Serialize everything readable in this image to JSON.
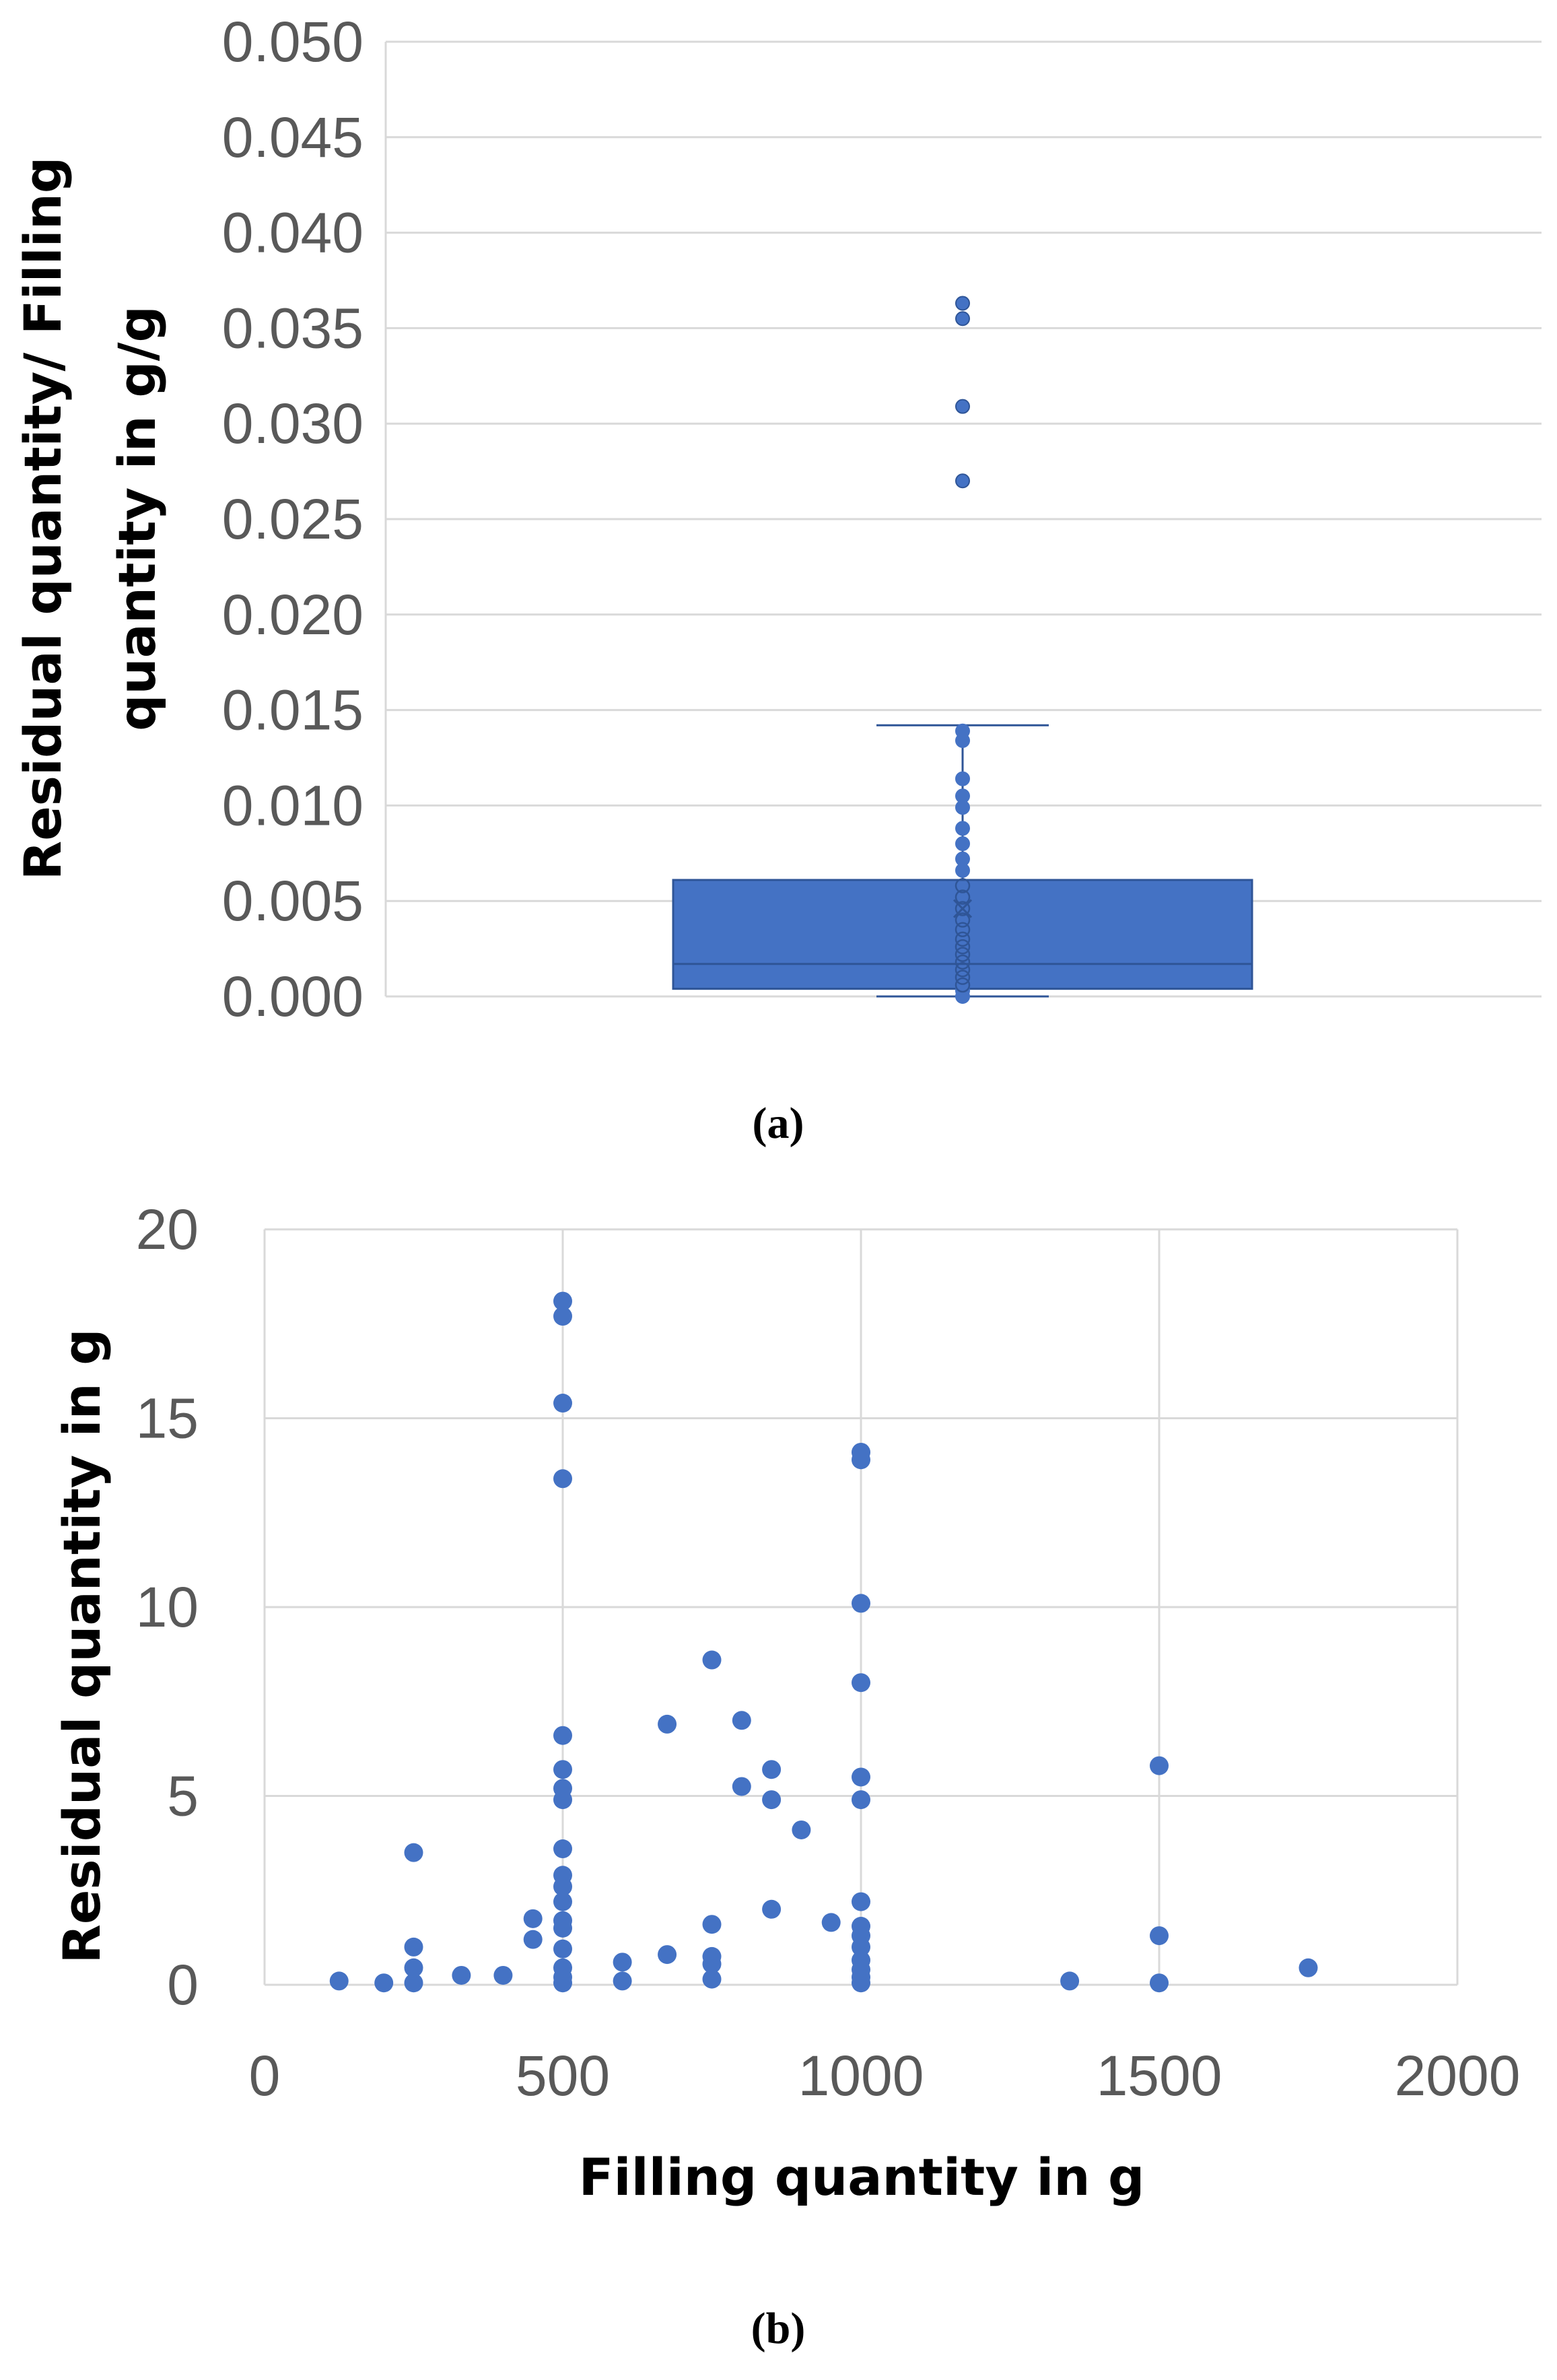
{
  "colors": {
    "series": "#4472C4",
    "box_fill": "#4472C4",
    "box_stroke": "#2F5597",
    "grid": "#D9D9D9",
    "tick_text": "#595959"
  },
  "chart_data": [
    {
      "id": "a",
      "type": "box",
      "caption_letter": "a",
      "ylabel_line1": "Residual quantity/ Filling",
      "ylabel_line2": "quantity in g/g",
      "xlabel": "",
      "ylim": [
        0,
        0.05
      ],
      "ytick_values": [
        0,
        0.005,
        0.01,
        0.015,
        0.02,
        0.025,
        0.03,
        0.035,
        0.04,
        0.045,
        0.05
      ],
      "ytick_labels": [
        "0.000",
        "0.005",
        "0.010",
        "0.015",
        "0.020",
        "0.025",
        "0.030",
        "0.035",
        "0.040",
        "0.045",
        "0.050"
      ],
      "grid": true,
      "box": {
        "min": 0.0,
        "q1": 0.0004,
        "median": 0.0017,
        "q3": 0.0061,
        "whisker_high": 0.0142,
        "mean": 0.0046
      },
      "outliers": [
        0.0363,
        0.0355,
        0.0309,
        0.027
      ],
      "points": [
        0.0,
        0.0003,
        0.0006,
        0.001,
        0.0014,
        0.0018,
        0.0022,
        0.0026,
        0.003,
        0.0035,
        0.004,
        0.0046,
        0.0052,
        0.0058,
        0.0066,
        0.0072,
        0.008,
        0.0088,
        0.0099,
        0.0105,
        0.0114,
        0.0134,
        0.0139
      ]
    },
    {
      "id": "b",
      "type": "scatter",
      "caption_letter": "b",
      "xlabel": "Filling quantity in g",
      "ylabel": "Residual quantity in g",
      "xlim": [
        0,
        2000
      ],
      "ylim": [
        0,
        20
      ],
      "xtick_values": [
        0,
        500,
        1000,
        1500,
        2000
      ],
      "xtick_labels": [
        "0",
        "500",
        "1000",
        "1500",
        "2000"
      ],
      "ytick_values": [
        0,
        5,
        10,
        15,
        20
      ],
      "ytick_labels": [
        "0",
        "5",
        "10",
        "15",
        "20"
      ],
      "grid": true,
      "points": [
        [
          125,
          0.1
        ],
        [
          200,
          0.05
        ],
        [
          250,
          3.5
        ],
        [
          250,
          1.0
        ],
        [
          250,
          0.45
        ],
        [
          250,
          0.05
        ],
        [
          330,
          0.25
        ],
        [
          400,
          0.25
        ],
        [
          450,
          1.75
        ],
        [
          450,
          1.2
        ],
        [
          500,
          18.1
        ],
        [
          500,
          17.7
        ],
        [
          500,
          15.4
        ],
        [
          500,
          13.4
        ],
        [
          500,
          6.6
        ],
        [
          500,
          5.7
        ],
        [
          500,
          5.2
        ],
        [
          500,
          4.9
        ],
        [
          500,
          3.6
        ],
        [
          500,
          2.9
        ],
        [
          500,
          2.6
        ],
        [
          500,
          2.2
        ],
        [
          500,
          1.7
        ],
        [
          500,
          1.5
        ],
        [
          500,
          0.95
        ],
        [
          500,
          0.45
        ],
        [
          500,
          0.2
        ],
        [
          500,
          0.05
        ],
        [
          600,
          0.6
        ],
        [
          600,
          0.1
        ],
        [
          675,
          6.9
        ],
        [
          675,
          0.8
        ],
        [
          750,
          8.6
        ],
        [
          750,
          1.6
        ],
        [
          750,
          0.75
        ],
        [
          750,
          0.55
        ],
        [
          750,
          0.15
        ],
        [
          800,
          7.0
        ],
        [
          800,
          5.25
        ],
        [
          850,
          5.7
        ],
        [
          850,
          4.9
        ],
        [
          850,
          2.0
        ],
        [
          900,
          4.1
        ],
        [
          950,
          1.65
        ],
        [
          1000,
          14.1
        ],
        [
          1000,
          13.9
        ],
        [
          1000,
          10.1
        ],
        [
          1000,
          8.0
        ],
        [
          1000,
          5.5
        ],
        [
          1000,
          4.9
        ],
        [
          1000,
          2.2
        ],
        [
          1000,
          1.55
        ],
        [
          1000,
          1.3
        ],
        [
          1000,
          1.0
        ],
        [
          1000,
          0.65
        ],
        [
          1000,
          0.4
        ],
        [
          1000,
          0.2
        ],
        [
          1000,
          0.05
        ],
        [
          1350,
          0.1
        ],
        [
          1500,
          5.8
        ],
        [
          1500,
          1.3
        ],
        [
          1500,
          0.05
        ],
        [
          1750,
          0.45
        ]
      ]
    }
  ]
}
